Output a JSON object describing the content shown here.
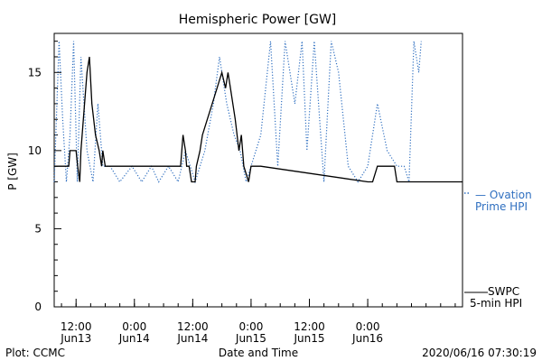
{
  "chart_data": {
    "type": "line",
    "title": "Hemispheric Power [GW]",
    "xlabel": "Date and Time",
    "ylabel": "P [GW]",
    "ylim": [
      0,
      17.5
    ],
    "xlim": [
      "2020-06-13T07:30",
      "2020-06-16T19:30"
    ],
    "yticks": [
      0,
      5,
      10,
      15
    ],
    "xticks": [
      {
        "t": "2020-06-13T12:00",
        "top": "12:00",
        "bottom": "Jun13"
      },
      {
        "t": "2020-06-14T00:00",
        "top": "0:00",
        "bottom": "Jun14"
      },
      {
        "t": "2020-06-14T12:00",
        "top": "12:00",
        "bottom": "Jun14"
      },
      {
        "t": "2020-06-15T00:00",
        "top": "0:00",
        "bottom": "Jun15"
      },
      {
        "t": "2020-06-15T12:00",
        "top": "12:00",
        "bottom": "Jun15"
      },
      {
        "t": "2020-06-16T00:00",
        "top": "0:00",
        "bottom": "Jun16"
      }
    ],
    "series": [
      {
        "name": "SWPC 5-min HPI",
        "style": "solid",
        "color": "#000000",
        "points": [
          [
            "2020-06-13T07:30",
            9
          ],
          [
            "2020-06-13T10:30",
            9
          ],
          [
            "2020-06-13T10:45",
            10
          ],
          [
            "2020-06-13T12:00",
            10
          ],
          [
            "2020-06-13T12:20",
            9
          ],
          [
            "2020-06-13T12:45",
            8
          ],
          [
            "2020-06-13T13:00",
            10
          ],
          [
            "2020-06-13T13:45",
            13
          ],
          [
            "2020-06-13T14:15",
            15
          ],
          [
            "2020-06-13T14:45",
            16
          ],
          [
            "2020-06-13T15:15",
            13
          ],
          [
            "2020-06-13T16:00",
            11
          ],
          [
            "2020-06-13T16:45",
            10
          ],
          [
            "2020-06-13T17:15",
            9
          ],
          [
            "2020-06-13T17:30",
            10
          ],
          [
            "2020-06-13T18:00",
            9
          ],
          [
            "2020-06-13T19:00",
            9
          ],
          [
            "2020-06-14T09:30",
            9
          ],
          [
            "2020-06-14T10:00",
            11
          ],
          [
            "2020-06-14T10:30",
            10
          ],
          [
            "2020-06-14T10:45",
            9
          ],
          [
            "2020-06-14T11:15",
            9
          ],
          [
            "2020-06-14T11:45",
            8
          ],
          [
            "2020-06-14T12:30",
            8
          ],
          [
            "2020-06-14T12:45",
            9
          ],
          [
            "2020-06-14T13:30",
            10
          ],
          [
            "2020-06-14T14:00",
            11
          ],
          [
            "2020-06-14T15:00",
            12
          ],
          [
            "2020-06-14T16:00",
            13
          ],
          [
            "2020-06-14T17:00",
            14
          ],
          [
            "2020-06-14T18:00",
            15
          ],
          [
            "2020-06-14T18:45",
            14
          ],
          [
            "2020-06-14T19:15",
            15
          ],
          [
            "2020-06-14T19:45",
            14
          ],
          [
            "2020-06-14T20:45",
            12
          ],
          [
            "2020-06-14T21:30",
            10
          ],
          [
            "2020-06-14T22:00",
            11
          ],
          [
            "2020-06-14T22:30",
            9
          ],
          [
            "2020-06-14T23:30",
            8
          ],
          [
            "2020-06-15T00:00",
            9
          ],
          [
            "2020-06-15T02:00",
            9
          ],
          [
            "2020-06-16T00:00",
            8
          ],
          [
            "2020-06-16T01:00",
            8
          ],
          [
            "2020-06-16T02:00",
            9
          ],
          [
            "2020-06-16T05:30",
            9
          ],
          [
            "2020-06-16T06:00",
            8
          ],
          [
            "2020-06-16T19:30",
            8
          ]
        ]
      },
      {
        "name": "Ovation Prime HPI",
        "style": "dotted",
        "color": "#2f6fc0",
        "points": [
          [
            "2020-06-13T07:30",
            8
          ],
          [
            "2020-06-13T08:30",
            17
          ],
          [
            "2020-06-13T09:15",
            12
          ],
          [
            "2020-06-13T10:00",
            8
          ],
          [
            "2020-06-13T10:45",
            11
          ],
          [
            "2020-06-13T11:30",
            17
          ],
          [
            "2020-06-13T12:15",
            8
          ],
          [
            "2020-06-13T13:00",
            16
          ],
          [
            "2020-06-13T14:15",
            10
          ],
          [
            "2020-06-13T15:30",
            8
          ],
          [
            "2020-06-13T16:30",
            13
          ],
          [
            "2020-06-13T17:30",
            9
          ],
          [
            "2020-06-13T19:00",
            9
          ],
          [
            "2020-06-13T21:00",
            8
          ],
          [
            "2020-06-13T23:30",
            9
          ],
          [
            "2020-06-14T01:30",
            8
          ],
          [
            "2020-06-14T03:30",
            9
          ],
          [
            "2020-06-14T05:00",
            8
          ],
          [
            "2020-06-14T07:00",
            9
          ],
          [
            "2020-06-14T09:00",
            8
          ],
          [
            "2020-06-14T10:30",
            10
          ],
          [
            "2020-06-14T12:30",
            8
          ],
          [
            "2020-06-14T14:30",
            10
          ],
          [
            "2020-06-14T16:15",
            13
          ],
          [
            "2020-06-14T17:30",
            16
          ],
          [
            "2020-06-14T19:00",
            13
          ],
          [
            "2020-06-14T20:30",
            11
          ],
          [
            "2020-06-14T21:45",
            10
          ],
          [
            "2020-06-14T23:00",
            8
          ],
          [
            "2020-06-15T02:00",
            11
          ],
          [
            "2020-06-15T04:00",
            17
          ],
          [
            "2020-06-15T05:30",
            9
          ],
          [
            "2020-06-15T07:00",
            17
          ],
          [
            "2020-06-15T09:00",
            13
          ],
          [
            "2020-06-15T10:30",
            17
          ],
          [
            "2020-06-15T11:30",
            10
          ],
          [
            "2020-06-15T13:00",
            17
          ],
          [
            "2020-06-15T15:00",
            8
          ],
          [
            "2020-06-15T16:30",
            17
          ],
          [
            "2020-06-15T18:00",
            15
          ],
          [
            "2020-06-15T20:00",
            9
          ],
          [
            "2020-06-15T22:00",
            8
          ],
          [
            "2020-06-16T00:00",
            9
          ],
          [
            "2020-06-16T02:00",
            13
          ],
          [
            "2020-06-16T04:00",
            10
          ],
          [
            "2020-06-16T06:00",
            9
          ],
          [
            "2020-06-16T07:30",
            9
          ],
          [
            "2020-06-16T08:30",
            8
          ],
          [
            "2020-06-16T09:30",
            17
          ],
          [
            "2020-06-16T10:30",
            15
          ],
          [
            "2020-06-16T11:00",
            17
          ]
        ]
      }
    ]
  },
  "legend": {
    "ovation_line1": "— Ovation",
    "ovation_line2": "Prime HPI",
    "swpc_line1": "SWPC",
    "swpc_line2": "5-min HPI"
  },
  "footer": {
    "left": "Plot: CCMC",
    "right": "2020/06/16 07:30:19"
  }
}
